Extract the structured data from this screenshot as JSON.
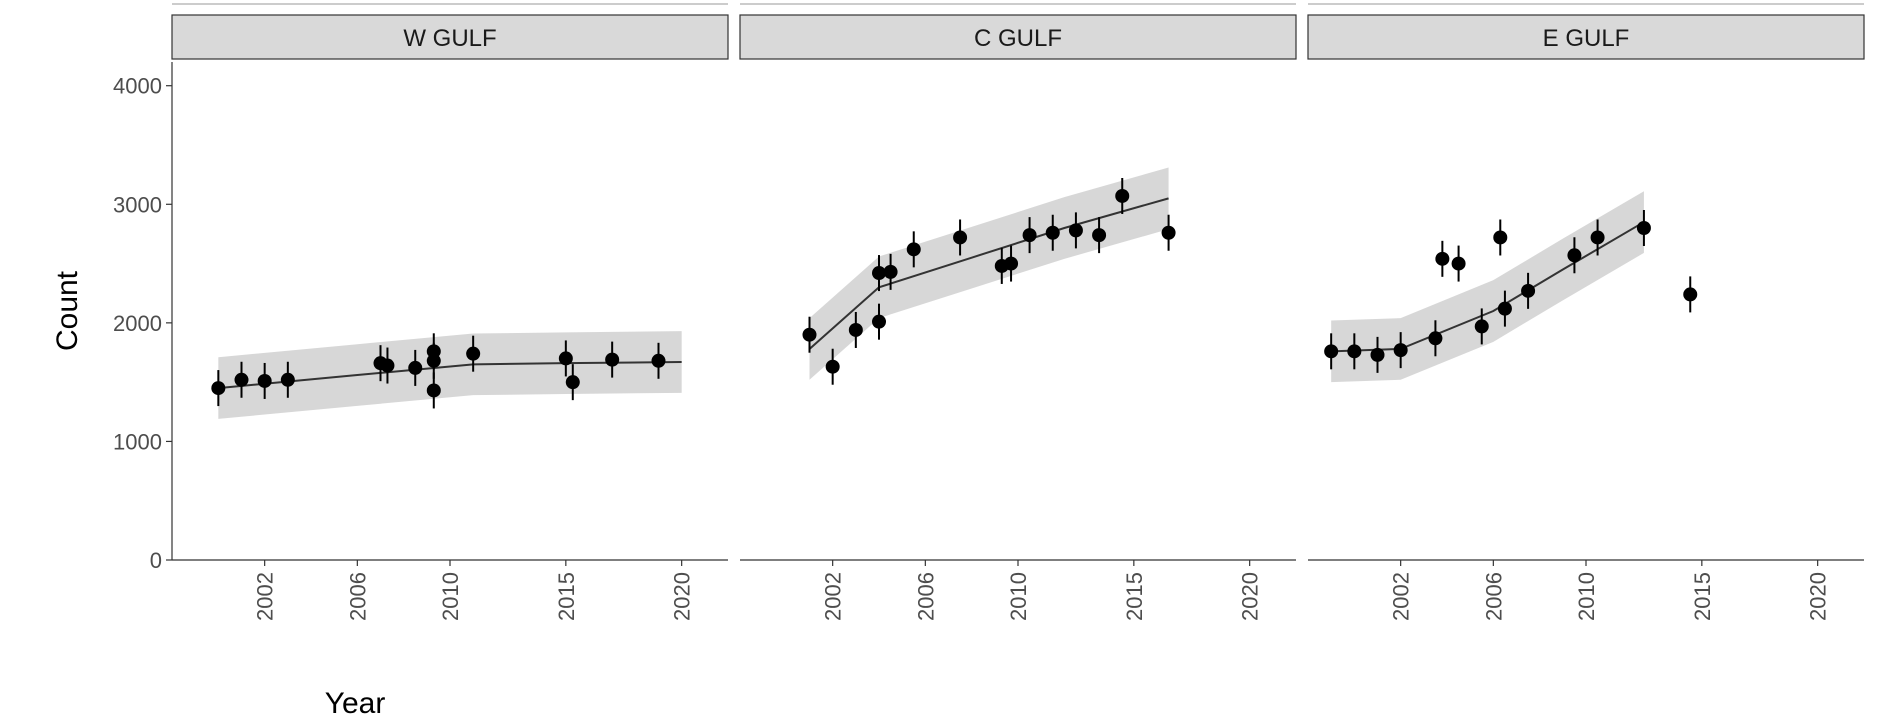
{
  "chart_data": {
    "type": "scatter",
    "facet_by": "region",
    "xlabel": "Year",
    "ylabel": "Count",
    "ylim": [
      0,
      4200
    ],
    "xlim": [
      1998,
      2022
    ],
    "y_ticks": [
      0,
      1000,
      2000,
      3000,
      4000
    ],
    "x_ticks": [
      2002,
      2006,
      2010,
      2015,
      2020
    ],
    "trend": "smoothed line with shaded confidence band",
    "colors": {
      "points": "#000000",
      "band": "#d0d0d0",
      "strip": "#d9d9d9",
      "line": "#333333"
    },
    "panels": [
      {
        "label": "W GULF",
        "points": [
          {
            "year": 2000,
            "count": 1450
          },
          {
            "year": 2001,
            "count": 1520
          },
          {
            "year": 2002,
            "count": 1510
          },
          {
            "year": 2003,
            "count": 1520
          },
          {
            "year": 2007,
            "count": 1660
          },
          {
            "year": 2007.3,
            "count": 1640
          },
          {
            "year": 2008.5,
            "count": 1620
          },
          {
            "year": 2009.3,
            "count": 1680
          },
          {
            "year": 2009.3,
            "count": 1760
          },
          {
            "year": 2009.3,
            "count": 1430
          },
          {
            "year": 2011,
            "count": 1740
          },
          {
            "year": 2015,
            "count": 1700
          },
          {
            "year": 2015.3,
            "count": 1500
          },
          {
            "year": 2017,
            "count": 1690
          },
          {
            "year": 2019,
            "count": 1680
          }
        ],
        "trend": [
          {
            "year": 2000,
            "count": 1450
          },
          {
            "year": 2006,
            "count": 1560
          },
          {
            "year": 2011,
            "count": 1650
          },
          {
            "year": 2015,
            "count": 1660
          },
          {
            "year": 2020,
            "count": 1670
          }
        ]
      },
      {
        "label": "C GULF",
        "points": [
          {
            "year": 2001,
            "count": 1900
          },
          {
            "year": 2002,
            "count": 1630
          },
          {
            "year": 2003,
            "count": 1940
          },
          {
            "year": 2004,
            "count": 2010
          },
          {
            "year": 2004,
            "count": 2420
          },
          {
            "year": 2004.5,
            "count": 2430
          },
          {
            "year": 2005.5,
            "count": 2620
          },
          {
            "year": 2007.5,
            "count": 2720
          },
          {
            "year": 2009.3,
            "count": 2480
          },
          {
            "year": 2009.7,
            "count": 2500
          },
          {
            "year": 2010.5,
            "count": 2740
          },
          {
            "year": 2011.5,
            "count": 2760
          },
          {
            "year": 2012.5,
            "count": 2780
          },
          {
            "year": 2013.5,
            "count": 2740
          },
          {
            "year": 2014.5,
            "count": 3070
          },
          {
            "year": 2016.5,
            "count": 2760
          }
        ],
        "trend": [
          {
            "year": 2001,
            "count": 1780
          },
          {
            "year": 2004,
            "count": 2300
          },
          {
            "year": 2008,
            "count": 2550
          },
          {
            "year": 2012,
            "count": 2800
          },
          {
            "year": 2016.5,
            "count": 3050
          }
        ]
      },
      {
        "label": "E GULF",
        "points": [
          {
            "year": 1999,
            "count": 1760
          },
          {
            "year": 2000,
            "count": 1760
          },
          {
            "year": 2001,
            "count": 1730
          },
          {
            "year": 2002,
            "count": 1770
          },
          {
            "year": 2003.5,
            "count": 1870
          },
          {
            "year": 2003.8,
            "count": 2540
          },
          {
            "year": 2004.5,
            "count": 2500
          },
          {
            "year": 2005.5,
            "count": 1970
          },
          {
            "year": 2006.3,
            "count": 2720
          },
          {
            "year": 2006.5,
            "count": 2120
          },
          {
            "year": 2007.5,
            "count": 2270
          },
          {
            "year": 2009.5,
            "count": 2570
          },
          {
            "year": 2010.5,
            "count": 2720
          },
          {
            "year": 2012.5,
            "count": 2800
          },
          {
            "year": 2014.5,
            "count": 2240
          }
        ],
        "trend": [
          {
            "year": 1999,
            "count": 1760
          },
          {
            "year": 2002,
            "count": 1780
          },
          {
            "year": 2006,
            "count": 2100
          },
          {
            "year": 2009,
            "count": 2450
          },
          {
            "year": 2012.5,
            "count": 2850
          }
        ]
      }
    ]
  }
}
